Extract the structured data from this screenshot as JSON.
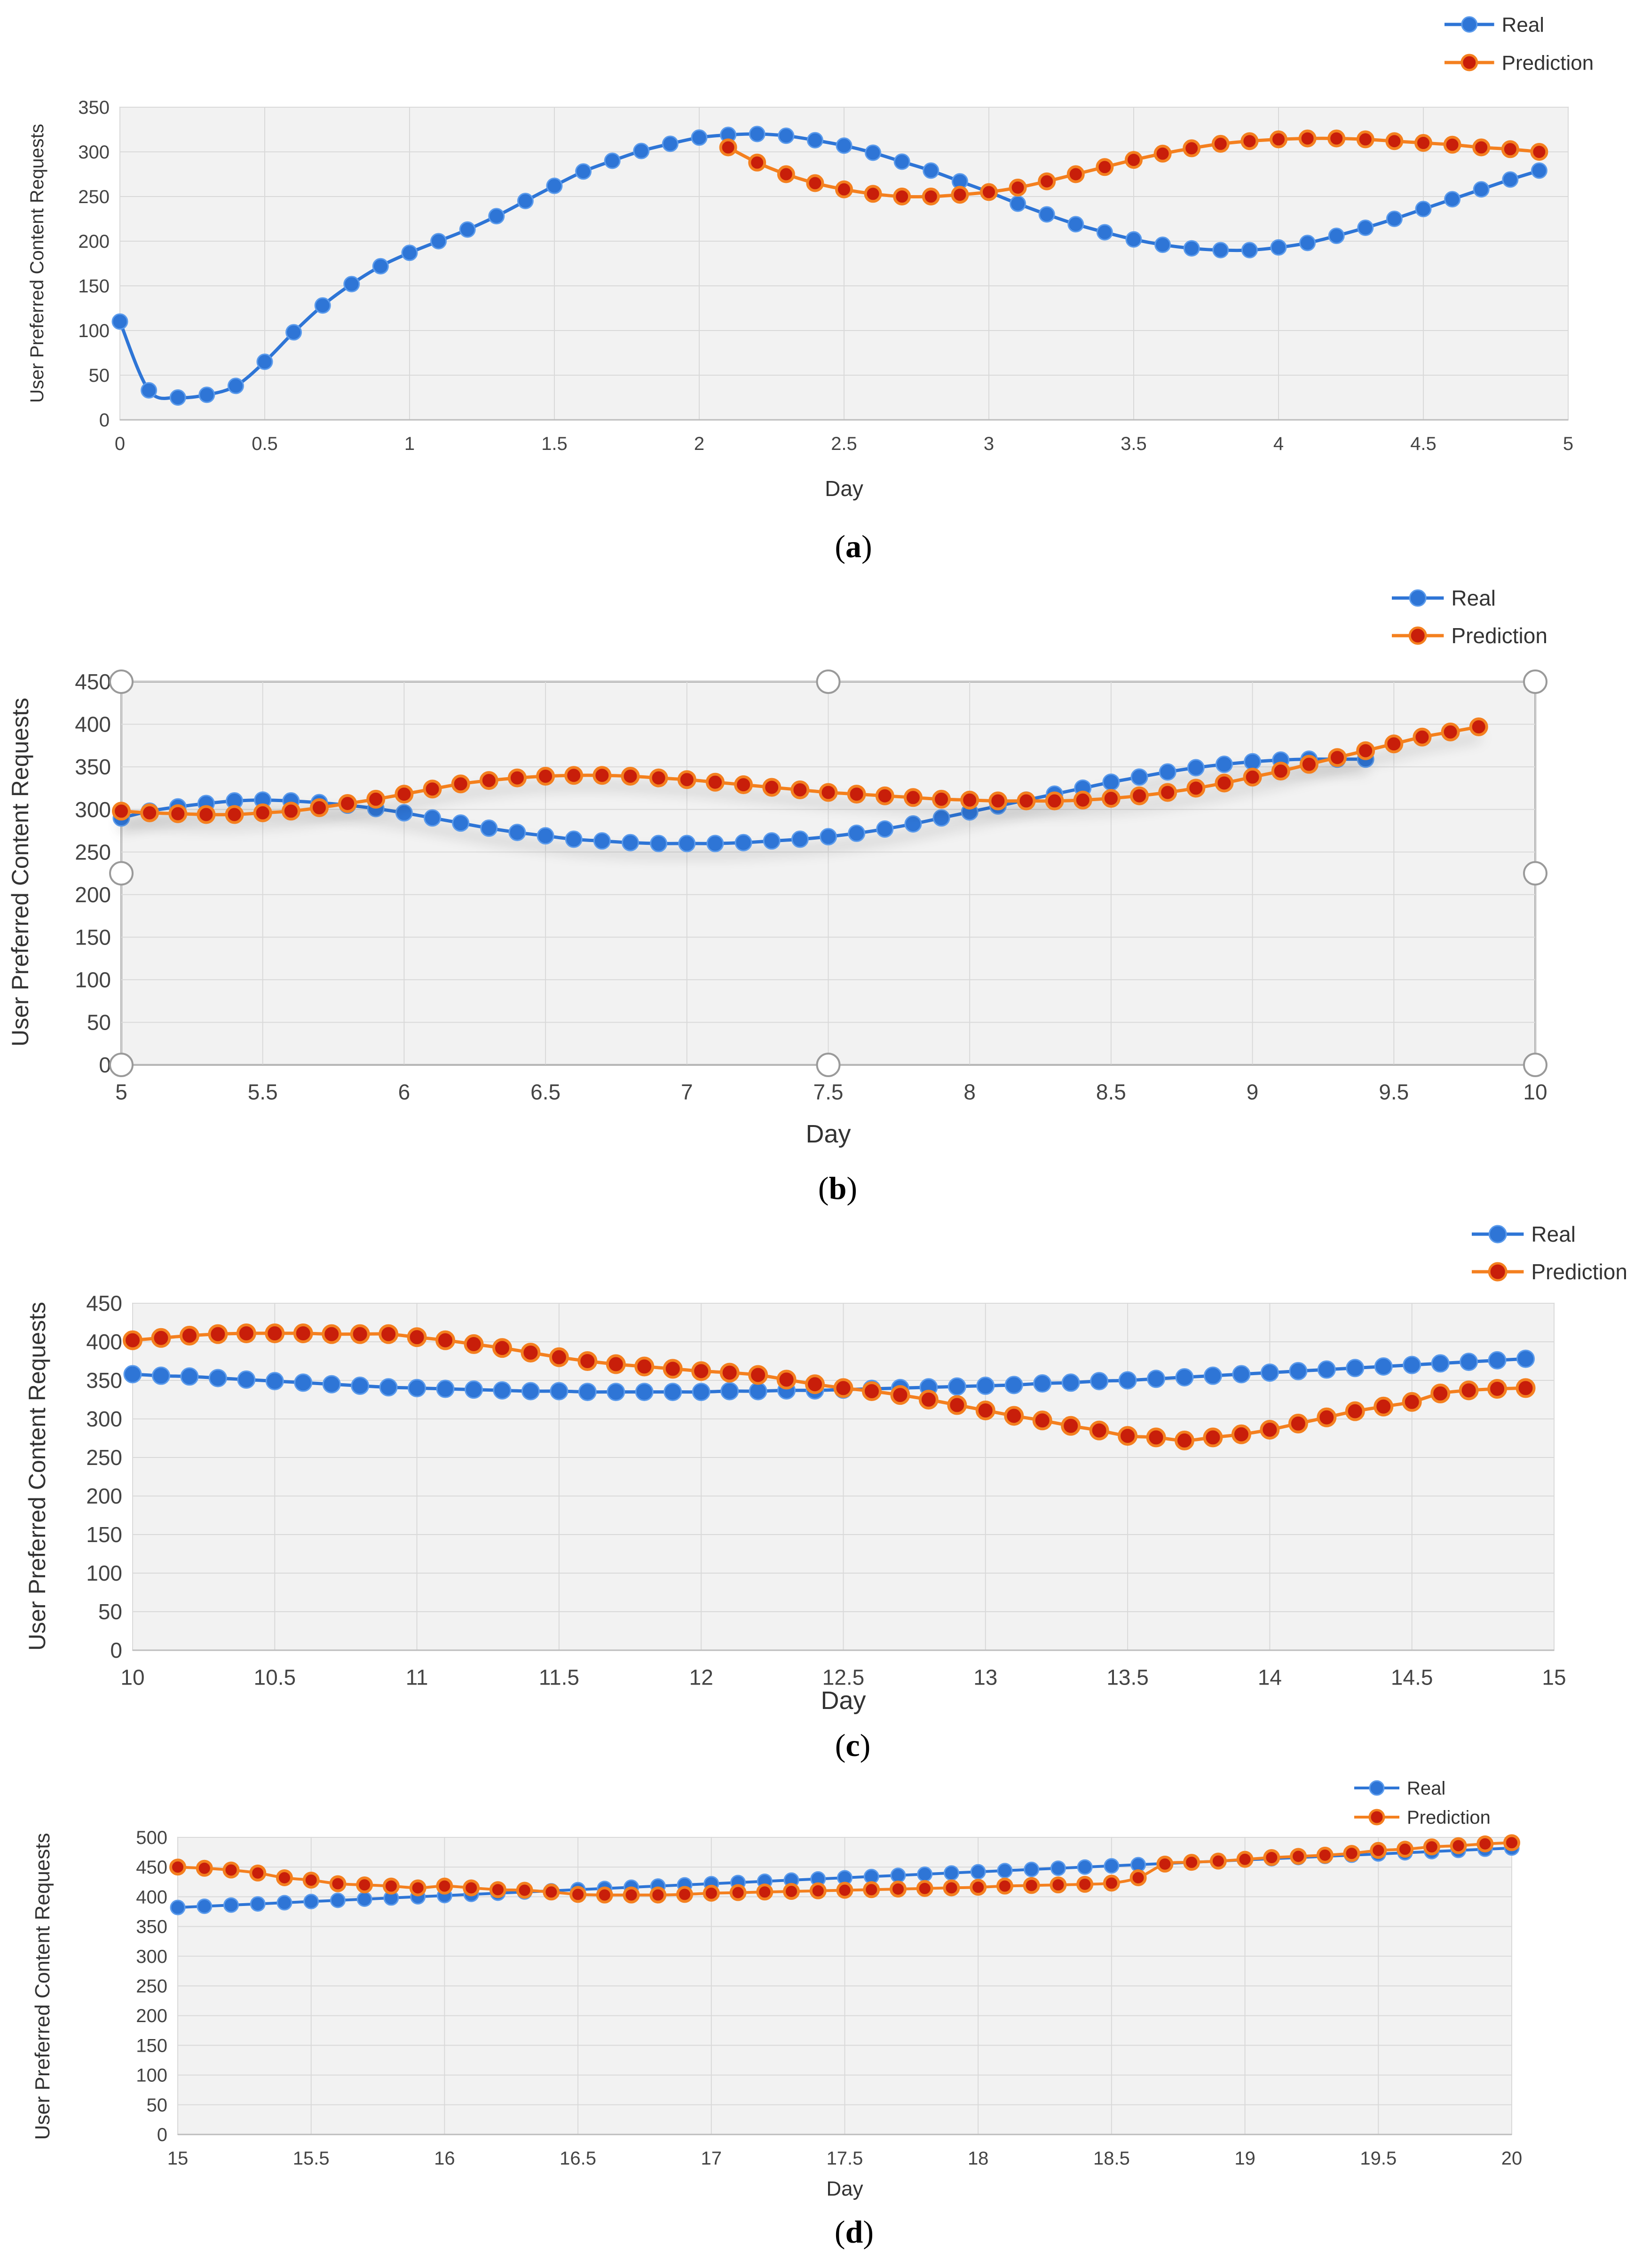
{
  "colors": {
    "real": "#2e75d6",
    "real_marker": "#2e75d6",
    "prediction": "#f4801f",
    "prediction_marker": "#c81e0a",
    "plot_bg": "#f2f2f2",
    "grid": "#d9d9d9"
  },
  "chart_data": [
    {
      "type": "line",
      "panel_label": "a",
      "xlabel": "Day",
      "ylabel": "User Preferred Content Requests",
      "xlim": [
        0,
        5
      ],
      "ylim": [
        0,
        350
      ],
      "xticks": [
        "0",
        "0.5",
        "1",
        "1.5",
        "2",
        "2.5",
        "3",
        "3.5",
        "4",
        "4.5",
        "5"
      ],
      "yticks": [
        "0",
        "50",
        "100",
        "150",
        "200",
        "250",
        "300",
        "350"
      ],
      "legend": [
        "Real",
        "Prediction"
      ],
      "series": [
        {
          "name": "Real",
          "x0": 0,
          "dx": 0.1,
          "values": [
            110,
            33,
            25,
            28,
            38,
            65,
            98,
            128,
            152,
            172,
            187,
            200,
            213,
            228,
            245,
            262,
            278,
            290,
            301,
            309,
            316,
            319,
            320,
            318,
            313,
            307,
            299,
            289,
            279,
            267,
            255,
            242,
            230,
            219,
            210,
            202,
            196,
            192,
            190,
            190,
            193,
            198,
            206,
            215,
            225,
            236,
            247,
            258,
            269,
            279
          ]
        },
        {
          "name": "Prediction",
          "x0": 2.1,
          "dx": 0.1,
          "values": [
            305,
            288,
            275,
            265,
            258,
            253,
            250,
            250,
            252,
            255,
            260,
            267,
            275,
            283,
            291,
            298,
            304,
            309,
            312,
            314,
            315,
            315,
            314,
            312,
            310,
            308,
            305,
            303,
            300
          ]
        }
      ]
    },
    {
      "type": "line",
      "panel_label": "b",
      "xlabel": "Day",
      "ylabel": "User Preferred Content Requests",
      "xlim": [
        5,
        10
      ],
      "ylim": [
        0,
        450
      ],
      "xticks": [
        "5",
        "5.5",
        "6",
        "6.5",
        "7",
        "7.5",
        "8",
        "8.5",
        "9",
        "9.5",
        "10"
      ],
      "yticks": [
        "0",
        "50",
        "100",
        "150",
        "200",
        "250",
        "300",
        "350",
        "400",
        "450"
      ],
      "legend": [
        "Real",
        "Prediction"
      ],
      "series": [
        {
          "name": "Real",
          "x0": 5,
          "dx": 0.1,
          "values": [
            290,
            298,
            303,
            307,
            310,
            311,
            310,
            308,
            305,
            301,
            296,
            290,
            284,
            278,
            273,
            269,
            265,
            263,
            261,
            260,
            260,
            260,
            261,
            263,
            265,
            268,
            272,
            277,
            283,
            290,
            297,
            304,
            311,
            318,
            325,
            332,
            338,
            344,
            349,
            353,
            356,
            358,
            359,
            359,
            359
          ]
        },
        {
          "name": "Prediction",
          "x0": 5,
          "dx": 0.1,
          "values": [
            298,
            296,
            295,
            294,
            294,
            296,
            298,
            302,
            307,
            312,
            318,
            324,
            330,
            334,
            337,
            339,
            340,
            340,
            339,
            337,
            335,
            332,
            329,
            326,
            323,
            320,
            318,
            316,
            314,
            312,
            311,
            310,
            310,
            310,
            311,
            313,
            316,
            320,
            325,
            331,
            338,
            345,
            353,
            361,
            369,
            377,
            385,
            391,
            397
          ]
        }
      ]
    },
    {
      "type": "line",
      "panel_label": "c",
      "xlabel": "Day",
      "ylabel": "User Preferred Content Requests",
      "xlim": [
        10,
        15
      ],
      "ylim": [
        0,
        450
      ],
      "xticks": [
        "10",
        "10.5",
        "11",
        "11.5",
        "12",
        "12.5",
        "13",
        "13.5",
        "14",
        "14.5",
        "15"
      ],
      "yticks": [
        "0",
        "50",
        "100",
        "150",
        "200",
        "250",
        "300",
        "350",
        "400",
        "450"
      ],
      "legend": [
        "Real",
        "Prediction"
      ],
      "series": [
        {
          "name": "Real",
          "x0": 10,
          "dx": 0.1,
          "values": [
            358,
            356,
            355,
            353,
            351,
            349,
            347,
            345,
            343,
            341,
            340,
            339,
            338,
            337,
            336,
            336,
            335,
            335,
            335,
            335,
            335,
            336,
            336,
            337,
            337,
            338,
            339,
            340,
            341,
            342,
            343,
            344,
            346,
            347,
            349,
            350,
            352,
            354,
            356,
            358,
            360,
            362,
            364,
            366,
            368,
            370,
            372,
            374,
            376,
            378
          ]
        },
        {
          "name": "Prediction",
          "x0": 10,
          "dx": 0.1,
          "values": [
            402,
            405,
            408,
            410,
            411,
            411,
            411,
            410,
            410,
            410,
            406,
            402,
            397,
            392,
            386,
            380,
            375,
            371,
            368,
            365,
            362,
            360,
            357,
            351,
            345,
            340,
            336,
            331,
            325,
            318,
            311,
            304,
            298,
            291,
            285,
            278,
            276,
            272,
            276,
            280,
            286,
            294,
            302,
            310,
            316,
            322,
            333,
            337,
            339,
            340
          ]
        }
      ]
    },
    {
      "type": "line",
      "panel_label": "d",
      "xlabel": "Day",
      "ylabel": "User Preferred Content Requests",
      "xlim": [
        15,
        20
      ],
      "ylim": [
        0,
        500
      ],
      "xticks": [
        "15",
        "15.5",
        "16",
        "16.5",
        "17",
        "17.5",
        "18",
        "18.5",
        "19",
        "19.5",
        "20"
      ],
      "yticks": [
        "0",
        "50",
        "100",
        "150",
        "200",
        "250",
        "300",
        "350",
        "400",
        "450",
        "500"
      ],
      "legend": [
        "Real",
        "Prediction"
      ],
      "series": [
        {
          "name": "Real",
          "x0": 15,
          "dx": 0.1,
          "values": [
            382,
            384,
            386,
            388,
            390,
            392,
            394,
            396,
            398,
            400,
            402,
            404,
            406,
            408,
            410,
            412,
            414,
            416,
            418,
            420,
            422,
            424,
            426,
            428,
            430,
            432,
            434,
            436,
            438,
            440,
            442,
            444,
            446,
            448,
            450,
            452,
            454,
            456,
            458,
            460,
            462,
            464,
            466,
            468,
            470,
            472,
            474,
            476,
            478,
            480,
            482
          ]
        },
        {
          "name": "Prediction",
          "x0": 15,
          "dx": 0.1,
          "values": [
            450,
            448,
            445,
            440,
            432,
            428,
            422,
            420,
            418,
            415,
            418,
            415,
            412,
            411,
            408,
            404,
            403,
            403,
            403,
            404,
            406,
            407,
            408,
            409,
            410,
            411,
            412,
            413,
            414,
            415,
            416,
            418,
            419,
            420,
            421,
            423,
            432,
            455,
            458,
            460,
            463,
            466,
            468,
            470,
            473,
            478,
            480,
            484,
            486,
            489,
            491
          ]
        }
      ]
    }
  ]
}
